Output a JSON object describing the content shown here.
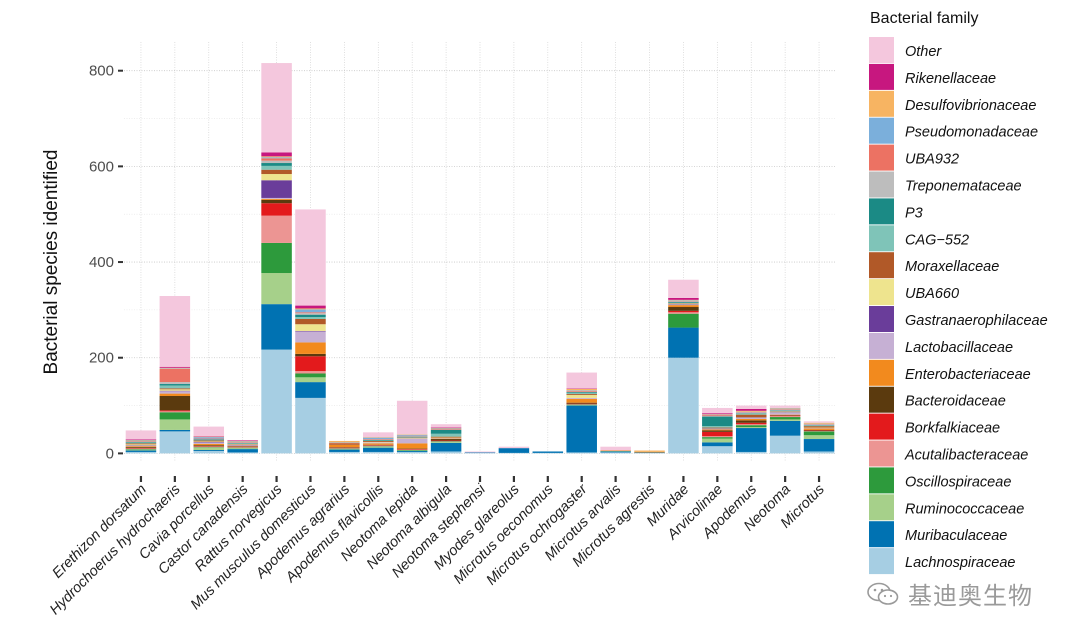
{
  "chart_data": {
    "type": "stacked-bar",
    "title": "",
    "xlabel": "",
    "ylabel": "Bacterial species identified",
    "ylim": [
      -18,
      860
    ],
    "yticks": [
      0,
      200,
      400,
      600,
      800
    ],
    "grid": true,
    "legend_title": "Bacterial family",
    "legend_position": "right",
    "categories": [
      "Erethizon dorsatum",
      "Hydrochoerus hydrochaeris",
      "Cavia porcellus",
      "Castor canadensis",
      "Rattus norvegicus",
      "Mus musculus domesticus",
      "Apodemus agrarius",
      "Apodemus flavicollis",
      "Neotoma lepida",
      "Neotoma albigula",
      "Neotoma stephensi",
      "Myodes glareolus",
      "Microtus oeconomus",
      "Microtus ochrogaster",
      "Microtus arvalis",
      "Microtus agrestis",
      "Muridae",
      "Arvicolinae",
      "Apodemus",
      "Neotoma",
      "Microtus"
    ],
    "series": [
      {
        "name": "Lachnospiraceae",
        "color": "#a6cee3",
        "values": [
          3,
          46,
          5,
          2,
          217,
          116,
          3,
          3,
          3,
          4,
          1,
          1,
          1,
          2,
          2,
          1,
          200,
          15,
          3,
          37,
          4
        ]
      },
      {
        "name": "Muribaculaceae",
        "color": "#0072b2",
        "values": [
          3,
          3,
          2,
          7,
          95,
          33,
          5,
          9,
          2,
          18,
          1,
          10,
          3,
          98,
          2,
          1,
          63,
          8,
          50,
          31,
          26
        ]
      },
      {
        "name": "Ruminococcaceae",
        "color": "#a6d08a",
        "values": [
          2,
          22,
          5,
          2,
          65,
          10,
          1,
          2,
          1,
          2,
          0,
          0,
          0,
          1,
          1,
          0,
          0,
          8,
          2,
          3,
          8
        ]
      },
      {
        "name": "Oscillospiraceae",
        "color": "#2d9a3c",
        "values": [
          1,
          15,
          1,
          1,
          63,
          8,
          1,
          1,
          1,
          1,
          0,
          0,
          0,
          1,
          0,
          0,
          29,
          3,
          4,
          5,
          8
        ]
      },
      {
        "name": "Acutalibacteraceae",
        "color": "#ec9593",
        "values": [
          1,
          2,
          1,
          1,
          57,
          5,
          1,
          1,
          1,
          1,
          0,
          0,
          0,
          1,
          0,
          0,
          3,
          2,
          2,
          2,
          1
        ]
      },
      {
        "name": "Borkfalkiaceae",
        "color": "#e31a1c",
        "values": [
          1,
          2,
          1,
          1,
          26,
          31,
          1,
          1,
          1,
          1,
          0,
          0,
          0,
          1,
          0,
          0,
          3,
          9,
          3,
          1,
          1
        ]
      },
      {
        "name": "Bacteroidaceae",
        "color": "#5b3a0e",
        "values": [
          2,
          30,
          2,
          1,
          7,
          5,
          1,
          1,
          1,
          3,
          0,
          0,
          0,
          2,
          0,
          0,
          8,
          3,
          5,
          1,
          1
        ]
      },
      {
        "name": "Enterobacteriaceae",
        "color": "#f28a1e",
        "values": [
          2,
          5,
          3,
          1,
          2,
          24,
          5,
          3,
          11,
          1,
          0,
          0,
          0,
          8,
          1,
          1,
          4,
          2,
          3,
          1,
          3
        ]
      },
      {
        "name": "Lactobacillaceae",
        "color": "#c6b0d4",
        "values": [
          1,
          5,
          3,
          1,
          2,
          23,
          0,
          2,
          10,
          1,
          0,
          0,
          0,
          2,
          0,
          0,
          1,
          1,
          2,
          4,
          1
        ]
      },
      {
        "name": "Gastranaerophilaceae",
        "color": "#6a3d9a",
        "values": [
          1,
          1,
          1,
          1,
          37,
          1,
          0,
          0,
          0,
          0,
          0,
          0,
          0,
          0,
          0,
          0,
          1,
          1,
          1,
          1,
          0
        ]
      },
      {
        "name": "UBA660",
        "color": "#eee48e",
        "values": [
          2,
          3,
          1,
          1,
          13,
          14,
          0,
          1,
          1,
          1,
          0,
          0,
          0,
          6,
          0,
          0,
          1,
          1,
          1,
          1,
          1
        ]
      },
      {
        "name": "Moraxellaceae",
        "color": "#b15928",
        "values": [
          2,
          2,
          2,
          1,
          9,
          11,
          3,
          2,
          1,
          2,
          0,
          0,
          0,
          2,
          0,
          0,
          1,
          1,
          5,
          1,
          3
        ]
      },
      {
        "name": "CAG−552",
        "color": "#7fc4b8",
        "values": [
          2,
          6,
          1,
          1,
          8,
          4,
          0,
          1,
          1,
          6,
          0,
          0,
          0,
          2,
          0,
          0,
          1,
          3,
          2,
          1,
          1
        ]
      },
      {
        "name": "P3",
        "color": "#1b8a85",
        "values": [
          1,
          3,
          1,
          1,
          6,
          5,
          0,
          1,
          1,
          8,
          0,
          0,
          0,
          2,
          0,
          0,
          2,
          20,
          1,
          1,
          1
        ]
      },
      {
        "name": "Treponemataceae",
        "color": "#bdbdbd",
        "values": [
          1,
          4,
          1,
          1,
          5,
          3,
          0,
          1,
          1,
          1,
          0,
          0,
          0,
          1,
          0,
          0,
          1,
          1,
          1,
          2,
          1
        ]
      },
      {
        "name": "UBA932",
        "color": "#ec7263",
        "values": [
          1,
          28,
          1,
          1,
          5,
          2,
          1,
          1,
          1,
          1,
          0,
          0,
          0,
          2,
          0,
          0,
          1,
          2,
          1,
          1,
          1
        ]
      },
      {
        "name": "Pseudomonadaceae",
        "color": "#7bafdb",
        "values": [
          1,
          1,
          3,
          1,
          2,
          6,
          1,
          3,
          2,
          1,
          0,
          0,
          0,
          1,
          0,
          0,
          1,
          1,
          1,
          1,
          1
        ]
      },
      {
        "name": "Desulfovibrionaceae",
        "color": "#f7b462",
        "values": [
          1,
          1,
          1,
          1,
          2,
          2,
          3,
          1,
          1,
          1,
          0,
          0,
          0,
          3,
          0,
          3,
          1,
          1,
          2,
          1,
          2
        ]
      },
      {
        "name": "Rikenellaceae",
        "color": "#c7177f",
        "values": [
          1,
          2,
          1,
          1,
          8,
          6,
          0,
          0,
          0,
          1,
          0,
          0,
          0,
          1,
          0,
          0,
          4,
          2,
          4,
          0,
          0
        ]
      },
      {
        "name": "Other",
        "color": "#f4c7dd",
        "values": [
          19,
          148,
          20,
          1,
          187,
          201,
          0,
          10,
          70,
          7,
          2,
          3,
          0,
          33,
          8,
          0,
          38,
          11,
          7,
          5,
          3
        ]
      }
    ]
  },
  "watermark": {
    "text": "基迪奥生物",
    "icon": "wechat-icon"
  }
}
